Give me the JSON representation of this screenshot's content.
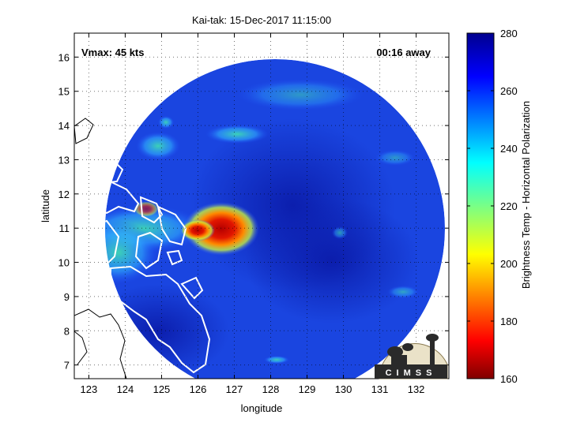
{
  "chart_data": {
    "type": "heatmap",
    "title": "Kai-tak: 15-Dec-2017 11:15:00",
    "xlabel": "longitude",
    "ylabel": "latitude",
    "x_ticks": [
      123,
      124,
      125,
      126,
      127,
      128,
      129,
      130,
      131,
      132
    ],
    "y_ticks": [
      7,
      8,
      9,
      10,
      11,
      12,
      13,
      14,
      15,
      16
    ],
    "xlim": [
      122.6,
      132.9
    ],
    "ylim": [
      6.6,
      16.7
    ],
    "grid": true,
    "annotations": {
      "vmax": "Vmax: 45 kts",
      "time_away": "00:16 away"
    },
    "colorbar": {
      "label": "Brightness Temp - Horizontal Polarization",
      "ticks": [
        160,
        180,
        200,
        220,
        240,
        260,
        280
      ],
      "range": [
        160,
        280
      ],
      "colormap": "jet"
    },
    "swath_center": {
      "lon": 128.4,
      "lat": 11.0
    },
    "cold_core": {
      "lon": 126.8,
      "lat": 11.0,
      "min_value": 170
    },
    "logo_text": "CIMSS"
  },
  "colors": {
    "swath_background": "#1437d6",
    "cold_core": "#c80000",
    "coastline": "#ffffff",
    "outside_coastline": "#000000"
  }
}
